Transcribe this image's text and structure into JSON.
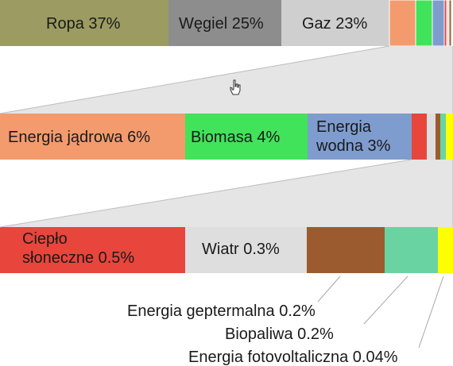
{
  "chart_data": {
    "type": "bar",
    "subtype": "stacked-breakdown",
    "title": "",
    "rows": [
      {
        "segments": [
          {
            "label": "Ropa 37%",
            "value": 37,
            "color": "#9b9b62"
          },
          {
            "label": "Węgiel 25%",
            "value": 25,
            "color": "#8d8d8d"
          },
          {
            "label": "Gaz 23%",
            "value": 23,
            "color": "#cfcfcf"
          },
          {
            "label": "",
            "value": 6,
            "color": "#f39b6d"
          },
          {
            "label": "",
            "value": 4,
            "color": "#41e35a"
          },
          {
            "label": "",
            "value": 3,
            "color": "#7f9ccf"
          },
          {
            "label": "",
            "value": 0.5,
            "color": "#e8453c"
          },
          {
            "label": "",
            "value": 0.3,
            "color": "#dedede"
          },
          {
            "label": "",
            "value": 0.2,
            "color": "#9b5b2e"
          },
          {
            "label": "",
            "value": 0.2,
            "color": "#6ad3a2"
          },
          {
            "label": "",
            "value": 0.04,
            "color": "#ffff00"
          }
        ]
      },
      {
        "segments": [
          {
            "label": "Energia jądrowa 6%",
            "value": 6,
            "color": "#f39b6d"
          },
          {
            "label": "Biomasa 4%",
            "value": 4,
            "color": "#41e35a"
          },
          {
            "label": "Energia\nwodna 3%",
            "value": 3,
            "color": "#7f9ccf"
          },
          {
            "label": "",
            "value": 0.5,
            "color": "#e8453c"
          },
          {
            "label": "",
            "value": 0.3,
            "color": "#dedede"
          },
          {
            "label": "",
            "value": 0.2,
            "color": "#9b5b2e"
          },
          {
            "label": "",
            "value": 0.2,
            "color": "#6ad3a2"
          },
          {
            "label": "",
            "value": 0.04,
            "color": "#ffff00"
          }
        ]
      },
      {
        "segments": [
          {
            "label": "Ciepło\nsłoneczne 0.5%",
            "value": 0.5,
            "color": "#e8453c"
          },
          {
            "label": "Wiatr 0.3%",
            "value": 0.3,
            "color": "#dedede"
          },
          {
            "label": "",
            "value": 0.2,
            "color": "#9b5b2e"
          },
          {
            "label": "",
            "value": 0.2,
            "color": "#6ad3a2"
          },
          {
            "label": "",
            "value": 0.04,
            "color": "#ffff00"
          }
        ]
      }
    ],
    "callouts": [
      {
        "label": "Energia geptermalna 0.2%",
        "value": 0.2,
        "color": "#9b5b2e"
      },
      {
        "label": "Biopaliwa 0.2%",
        "value": 0.2,
        "color": "#6ad3a2"
      },
      {
        "label": "Energia fotovoltaliczna 0.04%",
        "value": 0.04,
        "color": "#ffff00"
      }
    ],
    "connector_color": "#cfcfcf"
  },
  "icons": {
    "pointer": "hand-cursor-icon"
  }
}
